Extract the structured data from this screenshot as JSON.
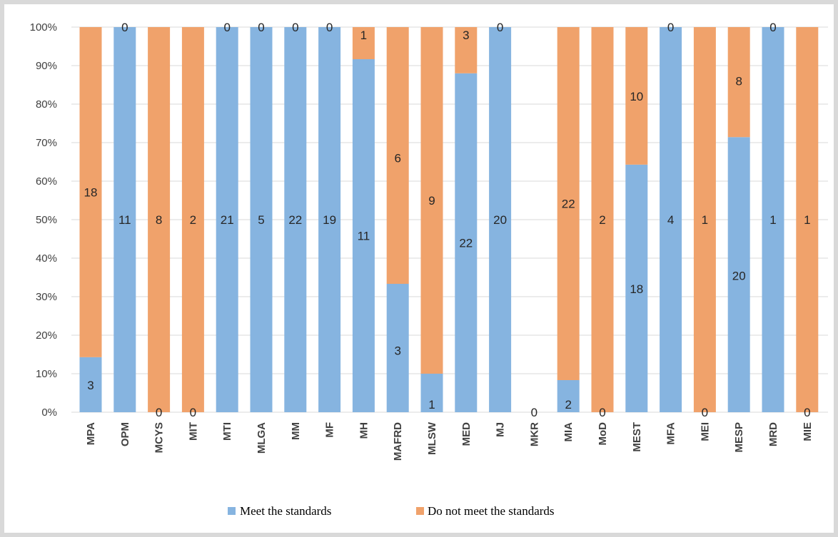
{
  "chart_data": {
    "type": "bar",
    "stacked": "percent",
    "categories": [
      "MPA",
      "OPM",
      "MCYS",
      "MIT",
      "MTI",
      "MLGA",
      "MM",
      "MF",
      "MH",
      "MAFRD",
      "MLSW",
      "MED",
      "MJ",
      "MKR",
      "MIA",
      "MoD",
      "MEST",
      "MFA",
      "MEI",
      "MESP",
      "MRD",
      "MIE"
    ],
    "series": [
      {
        "name": "Meet the standards",
        "color": "#86b4e0",
        "values": [
          3,
          11,
          0,
          0,
          21,
          5,
          22,
          19,
          11,
          3,
          1,
          22,
          20,
          0,
          2,
          0,
          18,
          4,
          0,
          20,
          1,
          0
        ]
      },
      {
        "name": "Do not meet the standards",
        "color": "#f0a26b",
        "values": [
          18,
          0,
          8,
          2,
          0,
          0,
          0,
          0,
          1,
          6,
          9,
          3,
          0,
          0,
          22,
          2,
          10,
          0,
          1,
          8,
          0,
          1
        ]
      }
    ],
    "yticks": [
      "0%",
      "10%",
      "20%",
      "30%",
      "40%",
      "50%",
      "60%",
      "70%",
      "80%",
      "90%",
      "100%"
    ],
    "ylim": [
      0,
      100
    ],
    "grid": true,
    "legend": "bottom"
  }
}
